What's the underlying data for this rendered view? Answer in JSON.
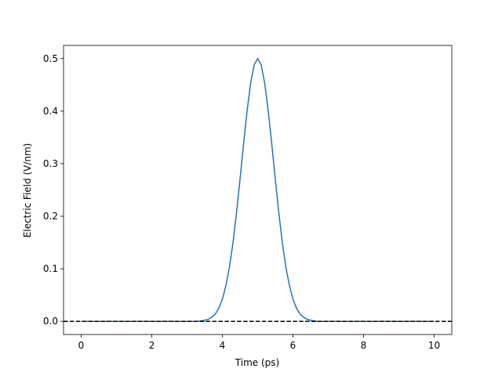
{
  "chart_data": {
    "type": "line",
    "xlabel": "Time (ps)",
    "ylabel": "Electric Field (V/nm)",
    "x": [
      0,
      0.1,
      0.2,
      0.3,
      0.4,
      0.5,
      0.6,
      0.7,
      0.8,
      0.9,
      1,
      1.1,
      1.2,
      1.3,
      1.4,
      1.5,
      1.6,
      1.7,
      1.8,
      1.9,
      2,
      2.1,
      2.2,
      2.3,
      2.4,
      2.5,
      2.6,
      2.7,
      2.8,
      2.9,
      3,
      3.1,
      3.2,
      3.3,
      3.4,
      3.5,
      3.6,
      3.7,
      3.8,
      3.9,
      4,
      4.1,
      4.2,
      4.3,
      4.4,
      4.5,
      4.6,
      4.7,
      4.8,
      4.9,
      5,
      5.1,
      5.2,
      5.3,
      5.4,
      5.5,
      5.6,
      5.7,
      5.8,
      5.9,
      6,
      6.1,
      6.2,
      6.3,
      6.4,
      6.5,
      6.6,
      6.7,
      6.8,
      6.9,
      7,
      7.1,
      7.2,
      7.3,
      7.4,
      7.5,
      7.6,
      7.7,
      7.8,
      7.9,
      8,
      8.1,
      8.2,
      8.3,
      8.4,
      8.5,
      8.6,
      8.7,
      8.8,
      8.9,
      9,
      9.1,
      9.2,
      9.3,
      9.4,
      9.5,
      9.6,
      9.7,
      9.8,
      9.9,
      10
    ],
    "series": [
      {
        "color": "#1f77b4",
        "values": [
          0,
          0,
          0,
          0,
          0,
          0,
          0,
          0,
          0,
          0,
          0,
          0,
          0,
          0,
          0,
          0,
          0,
          0,
          0,
          0,
          0,
          0,
          0,
          0,
          0,
          0,
          0,
          0,
          0,
          0,
          0,
          0,
          0,
          0,
          0.001,
          0.002,
          0.004,
          0.008,
          0.014,
          0.025,
          0.042,
          0.068,
          0.103,
          0.149,
          0.206,
          0.27,
          0.337,
          0.4,
          0.453,
          0.488,
          0.5,
          0.488,
          0.453,
          0.4,
          0.337,
          0.27,
          0.206,
          0.149,
          0.103,
          0.068,
          0.042,
          0.025,
          0.014,
          0.008,
          0.004,
          0.002,
          0.001,
          0,
          0,
          0,
          0,
          0,
          0,
          0,
          0,
          0,
          0,
          0,
          0,
          0,
          0,
          0,
          0,
          0,
          0,
          0,
          0,
          0,
          0,
          0,
          0,
          0,
          0,
          0,
          0,
          0,
          0,
          0,
          0,
          0,
          0
        ]
      }
    ],
    "hline": {
      "value": 0,
      "color": "#000000",
      "dashed": true
    },
    "xlim": [
      -0.5,
      10.5
    ],
    "ylim": [
      -0.025,
      0.525
    ],
    "xticks": [
      0,
      2,
      4,
      6,
      8,
      10
    ],
    "yticks": [
      {
        "value": 0,
        "label": "0.0"
      },
      {
        "value": 0.1,
        "label": "0.1"
      },
      {
        "value": 0.2,
        "label": "0.2"
      },
      {
        "value": 0.3,
        "label": "0.3"
      },
      {
        "value": 0.4,
        "label": "0.4"
      },
      {
        "value": 0.5,
        "label": "0.5"
      }
    ]
  }
}
